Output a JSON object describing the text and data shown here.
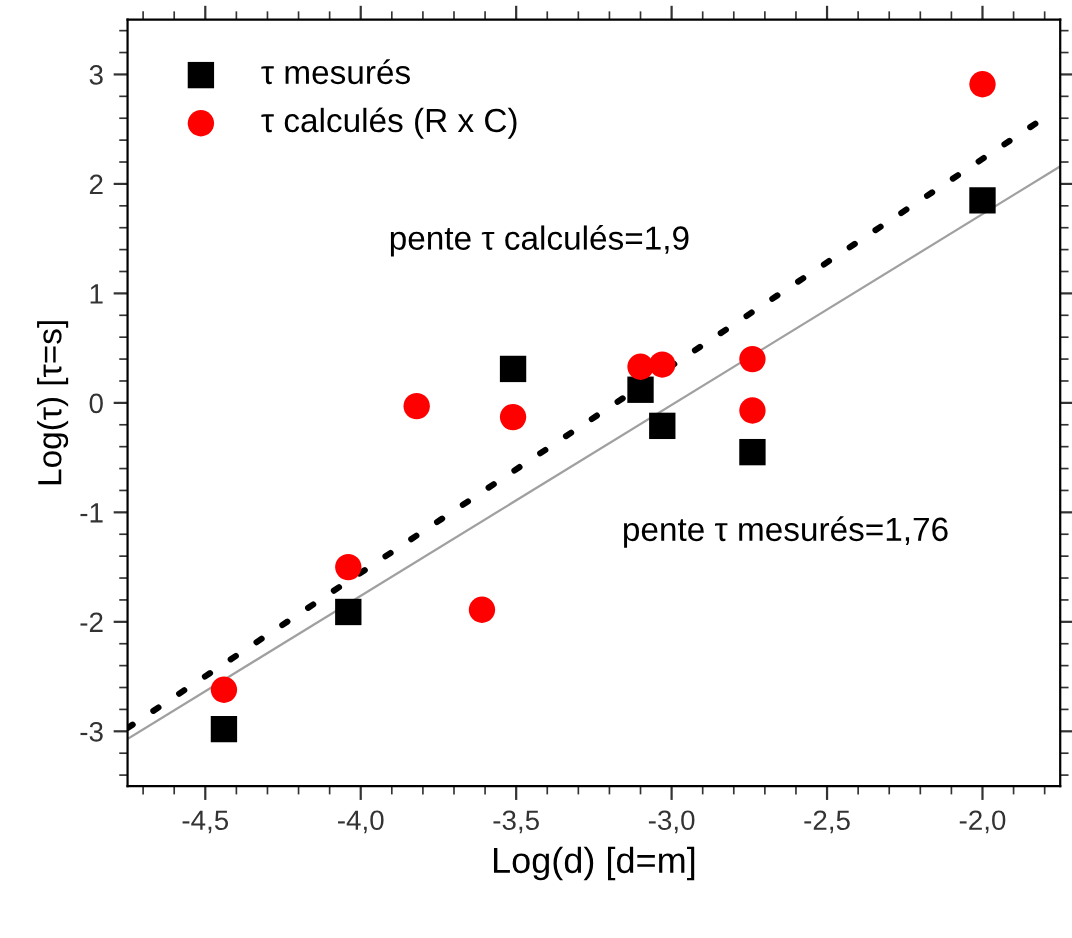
{
  "chart_data": {
    "type": "scatter",
    "xlabel": "Log(d) [d=m]",
    "ylabel": "Log(τ) [τ=s]",
    "series": [
      {
        "name": "τ mesurés",
        "marker": "square",
        "color": "#000000",
        "x": [
          -4.44,
          -4.04,
          -3.51,
          -3.1,
          -3.03,
          -2.74,
          -2.0
        ],
        "values": [
          -2.98,
          -1.91,
          0.31,
          0.12,
          -0.21,
          -0.45,
          1.85
        ]
      },
      {
        "name": "τ calculés (R x C)",
        "marker": "circle",
        "color": "#ff0000",
        "x": [
          -4.44,
          -4.04,
          -3.61,
          -3.82,
          -3.51,
          -3.1,
          -3.03,
          -2.74,
          -2.74,
          -2.0
        ],
        "values": [
          -2.62,
          -1.5,
          -1.89,
          -0.03,
          -0.13,
          0.33,
          0.35,
          0.4,
          -0.07,
          2.91
        ]
      },
      {
        "type": "line",
        "line_style": "solid",
        "color": "#a0a0a0",
        "x": [
          -4.75,
          -1.75
        ],
        "values": [
          -3.07,
          2.16
        ]
      },
      {
        "type": "line",
        "line_style": "dotted",
        "color": "#000000",
        "x": [
          -4.75,
          -1.83
        ],
        "values": [
          -2.97,
          2.55
        ]
      }
    ],
    "annotations": [
      "pente τ calculés=1,9",
      "pente τ mesurés=1,76"
    ],
    "xlim": [
      -4.75,
      -1.75
    ],
    "ylim": [
      -3.5,
      3.5
    ],
    "xticks": [
      {
        "value": -4.5,
        "label": "-4,5"
      },
      {
        "value": -4.0,
        "label": "-4,0"
      },
      {
        "value": -3.5,
        "label": "-3,5"
      },
      {
        "value": -3.0,
        "label": "-3,0"
      },
      {
        "value": -2.5,
        "label": "-2,5"
      },
      {
        "value": -2.0,
        "label": "-2,0"
      }
    ],
    "yticks": [
      -3,
      -2,
      -1,
      0,
      1,
      2,
      3
    ],
    "grid": false,
    "legend": "top left"
  }
}
